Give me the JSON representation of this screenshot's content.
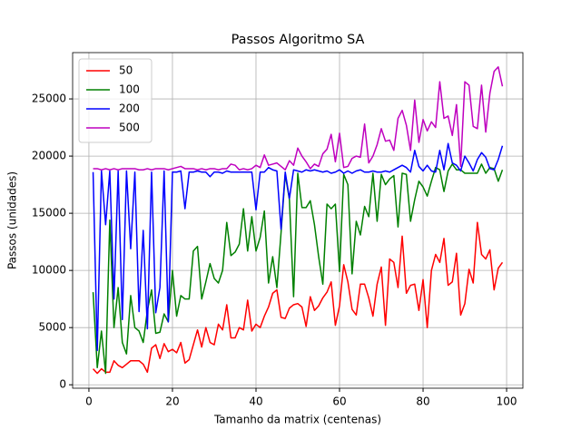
{
  "chart_data": {
    "type": "line",
    "title": "Passos Algoritmo SA",
    "xlabel": "Tamanho da matrix (centenas)",
    "ylabel": "Passos (unidades)",
    "x": [
      1,
      2,
      3,
      4,
      5,
      6,
      7,
      8,
      9,
      10,
      11,
      12,
      13,
      14,
      15,
      16,
      17,
      18,
      19,
      20,
      21,
      22,
      23,
      24,
      25,
      26,
      27,
      28,
      29,
      30,
      31,
      32,
      33,
      34,
      35,
      36,
      37,
      38,
      39,
      40,
      41,
      42,
      43,
      44,
      45,
      46,
      47,
      48,
      49,
      50,
      51,
      52,
      53,
      54,
      55,
      56,
      57,
      58,
      59,
      60,
      61,
      62,
      63,
      64,
      65,
      66,
      67,
      68,
      69,
      70,
      71,
      72,
      73,
      74,
      75,
      76,
      77,
      78,
      79,
      80,
      81,
      82,
      83,
      84,
      85,
      86,
      87,
      88,
      89,
      90,
      91,
      92,
      93,
      94,
      95,
      96,
      97,
      98,
      99
    ],
    "series": [
      {
        "name": "50",
        "color": "#ff0000",
        "values": [
          1400,
          1000,
          1400,
          1100,
          1100,
          2100,
          1700,
          1500,
          1800,
          2100,
          2100,
          2100,
          1800,
          1100,
          3200,
          3500,
          2300,
          3600,
          2900,
          3100,
          2800,
          3700,
          1900,
          2200,
          3500,
          4800,
          3300,
          5000,
          3700,
          3500,
          5300,
          4800,
          7000,
          4100,
          4100,
          5000,
          4800,
          7400,
          4700,
          5300,
          5000,
          6000,
          6800,
          8000,
          8300,
          5900,
          5800,
          6700,
          7000,
          7100,
          6800,
          5100,
          7700,
          6500,
          6900,
          7600,
          8100,
          9000,
          5200,
          6900,
          10500,
          9000,
          6600,
          6100,
          8800,
          8800,
          7600,
          6000,
          8800,
          10300,
          5200,
          11000,
          10700,
          8500,
          13000,
          8000,
          8700,
          8800,
          6500,
          9200,
          5000,
          10000,
          11400,
          10700,
          12800,
          8700,
          9000,
          11500,
          6100,
          7100,
          10100,
          8900,
          14200,
          11400,
          11000,
          11800,
          8300,
          10200,
          10700
        ]
      },
      {
        "name": "100",
        "color": "#008000",
        "values": [
          8100,
          1500,
          4700,
          1000,
          14400,
          5000,
          8500,
          3700,
          2700,
          7800,
          5000,
          4700,
          3700,
          6500,
          8300,
          4500,
          4600,
          6200,
          5500,
          10000,
          6000,
          7800,
          7500,
          7500,
          11700,
          12100,
          7500,
          9000,
          10600,
          9300,
          8900,
          10000,
          14200,
          11300,
          11600,
          12300,
          15400,
          11700,
          14700,
          11700,
          12900,
          15200,
          8900,
          11200,
          8500,
          13300,
          18400,
          16200,
          7700,
          18500,
          15500,
          15500,
          16100,
          14000,
          11200,
          8800,
          15800,
          15400,
          15800,
          9900,
          18400,
          17500,
          9700,
          14300,
          13100,
          15600,
          14700,
          18500,
          14300,
          18400,
          17500,
          18000,
          18300,
          13800,
          18500,
          18400,
          14300,
          16200,
          17800,
          17300,
          16500,
          17800,
          19000,
          18800,
          16900,
          18700,
          19300,
          18800,
          18800,
          18500,
          18500,
          18500,
          18500,
          19300,
          18500,
          19000,
          18900,
          17800,
          18800
        ]
      },
      {
        "name": "200",
        "color": "#0000ff",
        "values": [
          18600,
          3000,
          18700,
          14000,
          18700,
          7500,
          18700,
          5700,
          18700,
          11900,
          18600,
          6400,
          13500,
          4900,
          18600,
          6300,
          8500,
          18700,
          5500,
          18600,
          18600,
          18700,
          15400,
          18600,
          18600,
          18700,
          18600,
          18600,
          18200,
          18600,
          18600,
          18500,
          18700,
          18600,
          18600,
          18600,
          18600,
          18600,
          18600,
          15300,
          18600,
          18600,
          19000,
          18800,
          18700,
          13600,
          18600,
          16300,
          18800,
          18700,
          18600,
          18800,
          18700,
          18800,
          18700,
          18600,
          18700,
          18500,
          18600,
          18800,
          18500,
          18700,
          18500,
          18700,
          18800,
          18600,
          18600,
          18700,
          18600,
          18600,
          18700,
          18600,
          18800,
          19000,
          19200,
          19000,
          18600,
          20500,
          19100,
          18700,
          19200,
          18700,
          18600,
          20500,
          18800,
          21100,
          19400,
          19200,
          18700,
          20000,
          19400,
          18700,
          19700,
          20300,
          19900,
          18900,
          18800,
          19700,
          20900
        ]
      },
      {
        "name": "500",
        "color": "#bf00bf",
        "values": [
          18900,
          18900,
          18800,
          18900,
          18800,
          18900,
          18800,
          18900,
          18900,
          18900,
          18900,
          18800,
          18800,
          18900,
          18800,
          18900,
          18900,
          18900,
          18800,
          18900,
          19000,
          19100,
          18900,
          18900,
          18900,
          18800,
          18900,
          18800,
          18900,
          18900,
          18800,
          18900,
          18900,
          19300,
          19200,
          18800,
          18900,
          18800,
          18900,
          19200,
          19000,
          20100,
          19200,
          19300,
          19400,
          19100,
          18800,
          19600,
          19200,
          20700,
          20000,
          19500,
          18900,
          19300,
          19100,
          20200,
          20600,
          21900,
          19500,
          22000,
          19000,
          19100,
          19800,
          20000,
          19900,
          22800,
          19400,
          20000,
          21000,
          22400,
          21300,
          21400,
          20500,
          23300,
          24000,
          22700,
          20500,
          24900,
          21200,
          23200,
          22200,
          23000,
          22500,
          26500,
          23300,
          23500,
          21800,
          24500,
          19100,
          26500,
          26200,
          22600,
          22400,
          26200,
          22100,
          25500,
          27400,
          27800,
          26100
        ]
      }
    ],
    "xlim": [
      -3.9,
      103.9
    ],
    "ylim": [
      -300,
      29050
    ],
    "xticks": [
      0,
      20,
      40,
      60,
      80,
      100
    ],
    "yticks": [
      0,
      5000,
      10000,
      15000,
      20000,
      25000
    ],
    "grid": true,
    "legend": "upper left"
  }
}
